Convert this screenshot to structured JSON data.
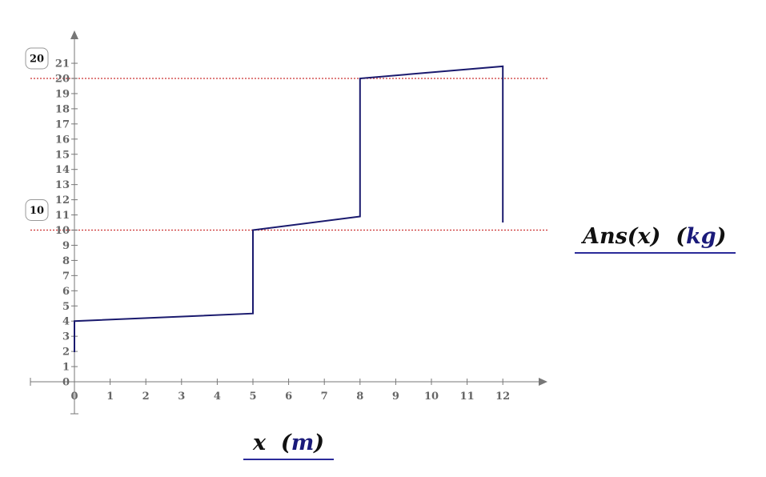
{
  "chart_data": {
    "type": "line",
    "series": [
      {
        "x": [
          0,
          0,
          5,
          5,
          8,
          8,
          12,
          12
        ],
        "y": [
          1.95,
          4,
          4.5,
          10,
          10.9,
          20,
          20.8,
          10.5
        ]
      }
    ],
    "xlabel_expr": "x",
    "xlabel_unit": "m",
    "ylabel_expr": "Ans(x)",
    "ylabel_unit": "kg",
    "x_ticks": [
      "0",
      "1",
      "2",
      "3",
      "4",
      "5",
      "6",
      "7",
      "8",
      "9",
      "10",
      "11",
      "12"
    ],
    "y_ticks": [
      "0",
      "1",
      "2",
      "3",
      "4",
      "5",
      "6",
      "7",
      "8",
      "9",
      "10",
      "11",
      "12",
      "13",
      "14",
      "15",
      "16",
      "17",
      "18",
      "19",
      "20",
      "21"
    ],
    "markers": [
      {
        "value": 10,
        "label": "10"
      },
      {
        "value": 20,
        "label": "20"
      }
    ],
    "xlim": [
      0,
      12
    ],
    "ylim": [
      0,
      21
    ],
    "colors": {
      "line": "#1a1a6e",
      "marker": "#cc3333",
      "axis": "#777777"
    }
  }
}
